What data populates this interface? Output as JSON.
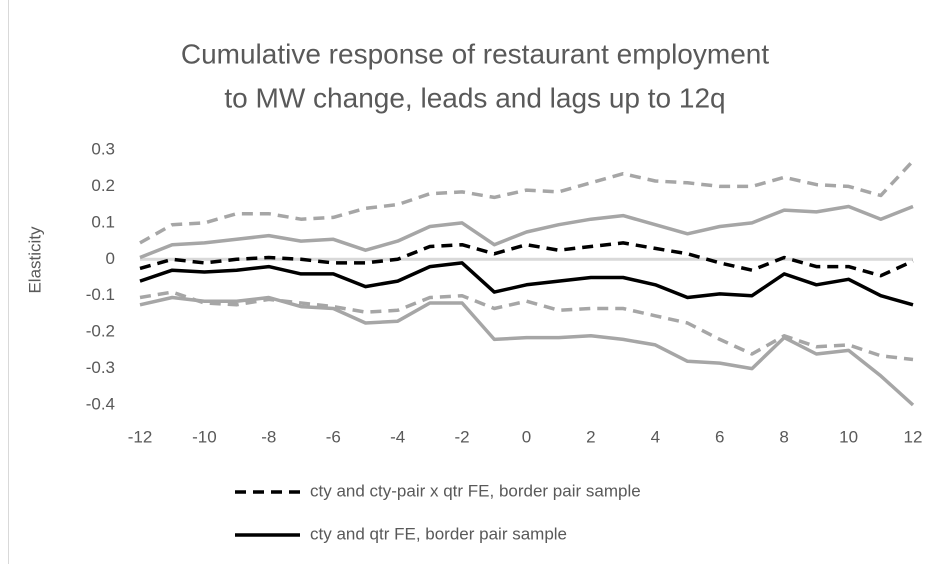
{
  "chart_data": {
    "type": "line",
    "title": [
      "Cumulative response of restaurant employment",
      "to MW change, leads and lags up to 12q"
    ],
    "y_label": "Elasticity",
    "x": [
      -12,
      -11,
      -10,
      -9,
      -8,
      -7,
      -6,
      -5,
      -4,
      -3,
      -2,
      -1,
      0,
      1,
      2,
      3,
      4,
      5,
      6,
      7,
      8,
      9,
      10,
      11,
      12
    ],
    "series": [
      {
        "color": "#a6a6a6",
        "dash": true,
        "values": [
          0.045,
          0.095,
          0.1,
          0.125,
          0.125,
          0.11,
          0.115,
          0.14,
          0.15,
          0.18,
          0.185,
          0.17,
          0.19,
          0.185,
          0.21,
          0.235,
          0.215,
          0.21,
          0.2,
          0.2,
          0.225,
          0.205,
          0.2,
          0.175,
          0.27
        ]
      },
      {
        "color": "#a6a6a6",
        "dash": true,
        "values": [
          -0.105,
          -0.09,
          -0.12,
          -0.125,
          -0.11,
          -0.12,
          -0.13,
          -0.145,
          -0.14,
          -0.105,
          -0.1,
          -0.135,
          -0.115,
          -0.14,
          -0.135,
          -0.135,
          -0.155,
          -0.175,
          -0.22,
          -0.26,
          -0.21,
          -0.24,
          -0.235,
          -0.265,
          -0.275
        ]
      },
      {
        "color": "#a6a6a6",
        "dash": false,
        "values": [
          0.005,
          0.04,
          0.045,
          0.055,
          0.065,
          0.05,
          0.055,
          0.025,
          0.05,
          0.09,
          0.1,
          0.04,
          0.075,
          0.095,
          0.11,
          0.12,
          0.095,
          0.07,
          0.09,
          0.1,
          0.135,
          0.13,
          0.145,
          0.11,
          0.145
        ]
      },
      {
        "color": "#a6a6a6",
        "dash": false,
        "values": [
          -0.125,
          -0.105,
          -0.115,
          -0.115,
          -0.105,
          -0.13,
          -0.135,
          -0.175,
          -0.17,
          -0.12,
          -0.12,
          -0.22,
          -0.215,
          -0.215,
          -0.21,
          -0.22,
          -0.235,
          -0.28,
          -0.285,
          -0.3,
          -0.215,
          -0.26,
          -0.25,
          -0.32,
          -0.4
        ]
      },
      {
        "name": "cty and cty-pair x qtr FE, border pair sample",
        "color": "#000000",
        "dash": true,
        "values": [
          -0.025,
          0.0,
          -0.01,
          0.0,
          0.005,
          0.0,
          -0.01,
          -0.01,
          0.0,
          0.035,
          0.04,
          0.015,
          0.04,
          0.025,
          0.035,
          0.045,
          0.03,
          0.015,
          -0.01,
          -0.03,
          0.005,
          -0.02,
          -0.02,
          -0.045,
          -0.005
        ]
      },
      {
        "name": "cty and qtr FE, border pair sample",
        "color": "#000000",
        "dash": false,
        "values": [
          -0.06,
          -0.03,
          -0.035,
          -0.03,
          -0.02,
          -0.04,
          -0.04,
          -0.075,
          -0.06,
          -0.02,
          -0.01,
          -0.09,
          -0.07,
          -0.06,
          -0.05,
          -0.05,
          -0.07,
          -0.105,
          -0.095,
          -0.1,
          -0.04,
          -0.07,
          -0.055,
          -0.1,
          -0.125
        ]
      }
    ],
    "xlim": [
      -12,
      12
    ],
    "xticks": [
      -12,
      -10,
      -8,
      -6,
      -4,
      -2,
      0,
      2,
      4,
      6,
      8,
      10,
      12
    ],
    "ylim": [
      -0.4,
      0.3
    ],
    "yticks": [
      0.3,
      0.2,
      0.1,
      0,
      -0.1,
      -0.2,
      -0.3,
      -0.4
    ],
    "grid": false
  }
}
